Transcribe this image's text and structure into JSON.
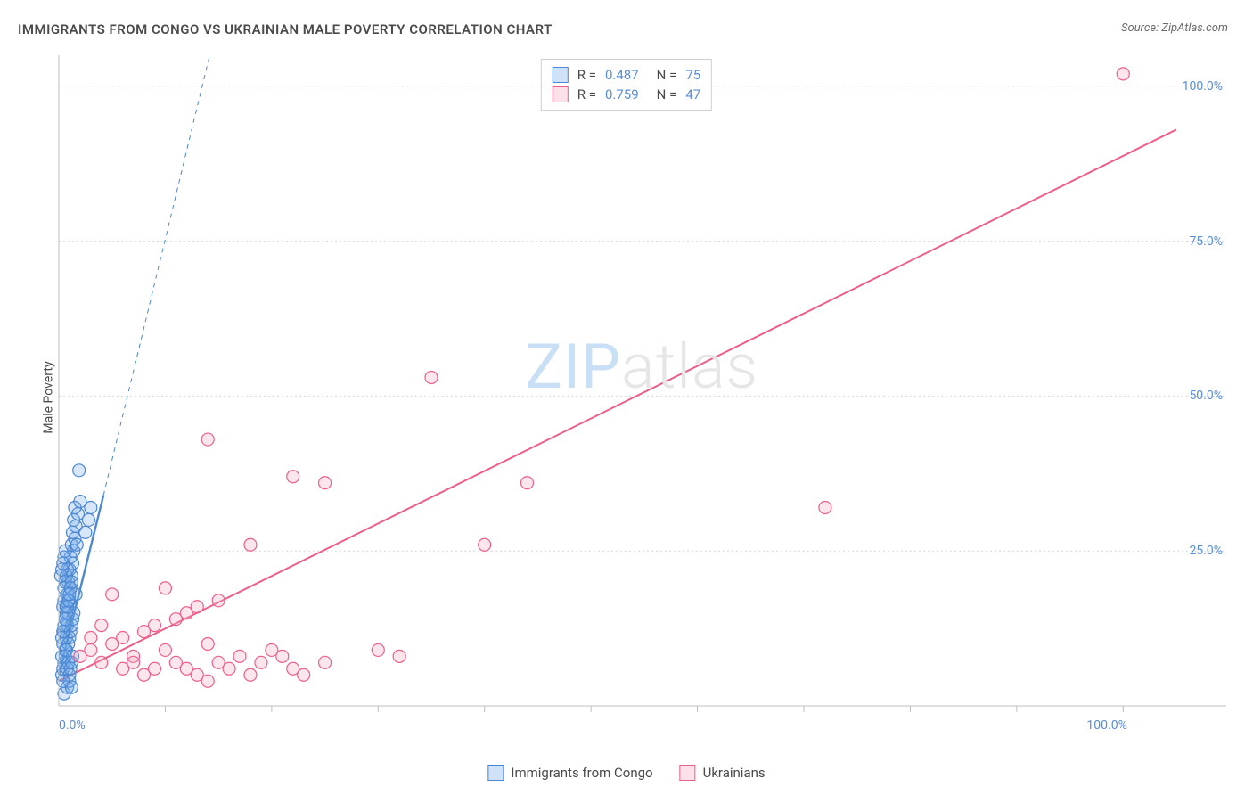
{
  "title": "IMMIGRANTS FROM CONGO VS UKRAINIAN MALE POVERTY CORRELATION CHART",
  "source": "Source: ZipAtlas.com",
  "y_axis_label": "Male Poverty",
  "watermark": {
    "part1": "ZIP",
    "part2": "atlas"
  },
  "chart": {
    "type": "scatter",
    "background_color": "#ffffff",
    "grid_color": "#d8d8d8",
    "axis_color": "#bfbfbf",
    "tick_color": "#5b8dd6",
    "tick_fontsize": 14,
    "label_fontsize": 14,
    "title_fontsize": 15,
    "xlim": [
      0,
      105
    ],
    "ylim": [
      0,
      105
    ],
    "y_ticks": [
      25,
      50,
      75,
      100
    ],
    "y_tick_labels": [
      "25.0%",
      "50.0%",
      "75.0%",
      "100.0%"
    ],
    "x_tick_lines": [
      10,
      20,
      30,
      40,
      50,
      60,
      70,
      80,
      90,
      100
    ],
    "x_tick_labels_min": "0.0%",
    "x_tick_labels_max": "100.0%",
    "marker_radius": 7,
    "marker_stroke_width": 1.2,
    "marker_fill_opacity": 0.28
  },
  "series": [
    {
      "name": "Immigrants from Congo",
      "color": "#6fa8e8",
      "stroke_color": "#4c87d1",
      "R": "0.487",
      "N": "75",
      "trend": {
        "x1": 0,
        "y1": 5,
        "x2": 4.2,
        "y2": 34,
        "width": 2.4,
        "dashed_extend_to": [
          16,
          118
        ]
      },
      "points": [
        [
          0.3,
          5
        ],
        [
          0.4,
          6
        ],
        [
          0.5,
          7
        ],
        [
          0.3,
          8
        ],
        [
          0.6,
          9
        ],
        [
          0.4,
          10
        ],
        [
          0.7,
          11
        ],
        [
          0.5,
          12
        ],
        [
          0.8,
          13
        ],
        [
          0.6,
          14
        ],
        [
          0.9,
          15
        ],
        [
          0.7,
          16
        ],
        [
          1.0,
          17
        ],
        [
          0.8,
          18
        ],
        [
          1.1,
          19
        ],
        [
          0.9,
          20
        ],
        [
          1.2,
          21
        ],
        [
          1.0,
          22
        ],
        [
          1.3,
          23
        ],
        [
          1.1,
          24
        ],
        [
          1.4,
          25
        ],
        [
          1.2,
          26
        ],
        [
          1.5,
          27
        ],
        [
          1.3,
          28
        ],
        [
          1.6,
          29
        ],
        [
          1.4,
          30
        ],
        [
          1.8,
          31
        ],
        [
          1.5,
          32
        ],
        [
          2.0,
          33
        ],
        [
          1.6,
          18
        ],
        [
          0.5,
          19
        ],
        [
          0.6,
          20
        ],
        [
          0.7,
          21
        ],
        [
          0.8,
          22
        ],
        [
          0.9,
          10
        ],
        [
          1.0,
          11
        ],
        [
          1.1,
          12
        ],
        [
          1.2,
          13
        ],
        [
          1.3,
          14
        ],
        [
          1.4,
          15
        ],
        [
          0.4,
          16
        ],
        [
          0.5,
          17
        ],
        [
          0.6,
          8
        ],
        [
          0.7,
          9
        ],
        [
          0.8,
          6
        ],
        [
          0.9,
          7
        ],
        [
          1.0,
          5
        ],
        [
          1.1,
          6
        ],
        [
          1.2,
          7
        ],
        [
          1.3,
          8
        ],
        [
          0.3,
          11
        ],
        [
          0.4,
          12
        ],
        [
          0.5,
          13
        ],
        [
          0.6,
          14
        ],
        [
          0.7,
          15
        ],
        [
          0.8,
          16
        ],
        [
          0.9,
          17
        ],
        [
          1.0,
          18
        ],
        [
          1.1,
          19
        ],
        [
          1.2,
          20
        ],
        [
          0.2,
          21
        ],
        [
          0.3,
          22
        ],
        [
          0.4,
          23
        ],
        [
          0.5,
          24
        ],
        [
          0.6,
          25
        ],
        [
          2.5,
          28
        ],
        [
          2.8,
          30
        ],
        [
          3.0,
          32
        ],
        [
          1.7,
          26
        ],
        [
          1.9,
          38
        ],
        [
          0.5,
          2
        ],
        [
          0.8,
          3
        ],
        [
          1.0,
          4
        ],
        [
          1.2,
          3
        ],
        [
          0.4,
          4
        ]
      ]
    },
    {
      "name": "Ukrainians",
      "color": "#f5a5bd",
      "stroke_color": "#ec5f8a",
      "R": "0.759",
      "N": "47",
      "trend": {
        "x1": 0,
        "y1": 4,
        "x2": 105,
        "y2": 93,
        "width": 2.0
      },
      "points": [
        [
          2,
          8
        ],
        [
          3,
          9
        ],
        [
          4,
          7
        ],
        [
          5,
          10
        ],
        [
          6,
          11
        ],
        [
          7,
          8
        ],
        [
          8,
          12
        ],
        [
          9,
          13
        ],
        [
          10,
          9
        ],
        [
          11,
          14
        ],
        [
          12,
          15
        ],
        [
          13,
          16
        ],
        [
          14,
          10
        ],
        [
          15,
          17
        ],
        [
          5,
          18
        ],
        [
          6,
          6
        ],
        [
          7,
          7
        ],
        [
          8,
          5
        ],
        [
          9,
          6
        ],
        [
          10,
          19
        ],
        [
          11,
          7
        ],
        [
          12,
          6
        ],
        [
          13,
          5
        ],
        [
          14,
          4
        ],
        [
          15,
          7
        ],
        [
          16,
          6
        ],
        [
          17,
          8
        ],
        [
          18,
          5
        ],
        [
          19,
          7
        ],
        [
          20,
          9
        ],
        [
          21,
          8
        ],
        [
          22,
          6
        ],
        [
          23,
          5
        ],
        [
          30,
          9
        ],
        [
          32,
          8
        ],
        [
          25,
          7
        ],
        [
          14,
          43
        ],
        [
          18,
          26
        ],
        [
          22,
          37
        ],
        [
          25,
          36
        ],
        [
          35,
          53
        ],
        [
          40,
          26
        ],
        [
          44,
          36
        ],
        [
          72,
          32
        ],
        [
          100,
          102
        ],
        [
          3,
          11
        ],
        [
          4,
          13
        ]
      ]
    }
  ],
  "bottom_legend": [
    {
      "label": "Immigrants from Congo",
      "color": "#6fa8e8",
      "stroke": "#4c87d1"
    },
    {
      "label": "Ukrainians",
      "color": "#f5a5bd",
      "stroke": "#ec5f8a"
    }
  ]
}
